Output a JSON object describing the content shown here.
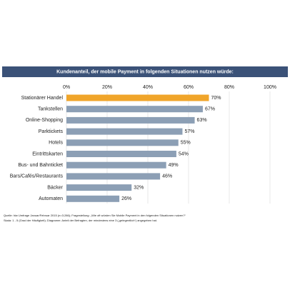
{
  "chart_data": {
    "type": "hbar",
    "title": "Kundenanteil, der mobile Payment in folgenden Situationen nutzen würde:",
    "categories": [
      "Stationärer Handel",
      "Tankstellen",
      "Online-Shopping",
      "Parktickets",
      "Hotels",
      "Eintrittskarten",
      "Bus- und Bahnticket",
      "Bars/Cafés/Restaurants",
      "Bäcker",
      "Automaten"
    ],
    "values": [
      70,
      67,
      63,
      57,
      55,
      54,
      49,
      46,
      32,
      26
    ],
    "value_labels": [
      "70%",
      "67%",
      "63%",
      "57%",
      "55%",
      "54%",
      "49%",
      "46%",
      "32%",
      "26%"
    ],
    "colors": [
      "#f0a52a",
      "#8c9fb5",
      "#8c9fb5",
      "#8c9fb5",
      "#8c9fb5",
      "#8c9fb5",
      "#8c9fb5",
      "#8c9fb5",
      "#8c9fb5",
      "#8c9fb5"
    ],
    "xlim": [
      0,
      100
    ],
    "xticks": [
      {
        "value": 0,
        "label": "0%"
      },
      {
        "value": 20,
        "label": "20%"
      },
      {
        "value": 40,
        "label": "40%"
      },
      {
        "value": 60,
        "label": "60%"
      },
      {
        "value": 80,
        "label": "80%"
      },
      {
        "value": 100,
        "label": "100%"
      }
    ],
    "grid": true,
    "notes": [
      "Quelle: hiw Umfrage Januar/Februar 2015 (n=3.286); Fragestellung: „Wie oft würden Sie Mobile Payment in den folgenden Situationen nutzen?“",
      "Skala: 1 - 5 (Grad der Häufigkeit); Diagramm: Anteil der Befragten, der mindestens eine 3 („gelegentlich“) angegeben hat."
    ]
  }
}
